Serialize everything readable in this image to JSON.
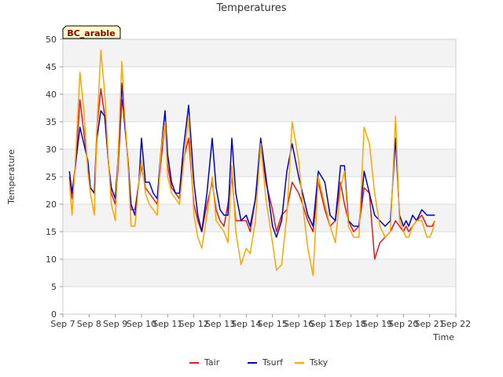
{
  "chart_data": {
    "type": "line",
    "title": "Temperatures",
    "xlabel": "Time",
    "ylabel": "Temperature",
    "site_label": "BC_arable",
    "ylim": [
      0,
      50
    ],
    "yticks": [
      0,
      5,
      10,
      15,
      20,
      25,
      30,
      35,
      40,
      45,
      50
    ],
    "xlim": [
      7,
      22
    ],
    "xticks": [
      {
        "value": 7,
        "label": "Sep 7"
      },
      {
        "value": 8,
        "label": "Sep 8"
      },
      {
        "value": 9,
        "label": "Sep 9"
      },
      {
        "value": 10,
        "label": "Sep 10"
      },
      {
        "value": 11,
        "label": "Sep 11"
      },
      {
        "value": 12,
        "label": "Sep 12"
      },
      {
        "value": 13,
        "label": "Sep 13"
      },
      {
        "value": 14,
        "label": "Sep 14"
      },
      {
        "value": 15,
        "label": "Sep 15"
      },
      {
        "value": 16,
        "label": "Sep 16"
      },
      {
        "value": 17,
        "label": "Sep 17"
      },
      {
        "value": 18,
        "label": "Sep 18"
      },
      {
        "value": 19,
        "label": "Sep 19"
      },
      {
        "value": 20,
        "label": "Sep 20"
      },
      {
        "value": 21,
        "label": "Sep 21"
      },
      {
        "value": 22,
        "label": "Sep 22"
      }
    ],
    "legend_position": "bottom-center",
    "series": [
      {
        "name": "Tair",
        "color": "#e31a1c",
        "x": [
          7.25,
          7.35,
          7.5,
          7.65,
          7.8,
          7.95,
          8.05,
          8.2,
          8.3,
          8.45,
          8.6,
          8.75,
          8.85,
          9.0,
          9.1,
          9.25,
          9.35,
          9.5,
          9.6,
          9.75,
          9.9,
          10.0,
          10.15,
          10.3,
          10.45,
          10.6,
          10.75,
          10.9,
          11.0,
          11.15,
          11.3,
          11.45,
          11.6,
          11.8,
          12.0,
          12.15,
          12.3,
          12.5,
          12.7,
          12.85,
          13.0,
          13.15,
          13.3,
          13.45,
          13.6,
          13.8,
          14.0,
          14.15,
          14.35,
          14.55,
          14.75,
          15.0,
          15.15,
          15.35,
          15.55,
          15.75,
          16.0,
          16.15,
          16.35,
          16.55,
          16.75,
          17.0,
          17.2,
          17.4,
          17.6,
          17.75,
          17.9,
          18.1,
          18.3,
          18.5,
          18.7,
          18.9,
          19.1,
          19.3,
          19.5,
          19.7,
          19.85,
          20.0,
          20.1,
          20.2,
          20.35,
          20.5,
          20.7,
          20.9,
          21.0,
          21.1,
          21.2
        ],
        "y": [
          25,
          21,
          28,
          39,
          33,
          27,
          23,
          22,
          34,
          41,
          36,
          27,
          22,
          20,
          26,
          39,
          36,
          27,
          19,
          19,
          24,
          27,
          23,
          22,
          21,
          20,
          28,
          35,
          27,
          23,
          22,
          21,
          28,
          32,
          20,
          17,
          15,
          20,
          24,
          19,
          17,
          16,
          20,
          25,
          17,
          17,
          17,
          15,
          21,
          31,
          24,
          19,
          15,
          18,
          19,
          24,
          22,
          20,
          17,
          15,
          24,
          19,
          16,
          17,
          24,
          20,
          17,
          15,
          16,
          23,
          22,
          10,
          13,
          14,
          15,
          17,
          16,
          15,
          16,
          15,
          16,
          17,
          18,
          16,
          16,
          16,
          17
        ]
      },
      {
        "name": "Tsurf",
        "color": "#0000cc",
        "x": [
          7.25,
          7.35,
          7.5,
          7.65,
          7.8,
          7.95,
          8.05,
          8.2,
          8.3,
          8.45,
          8.6,
          8.75,
          8.85,
          9.0,
          9.1,
          9.25,
          9.35,
          9.5,
          9.6,
          9.75,
          9.9,
          10.0,
          10.15,
          10.3,
          10.45,
          10.6,
          10.75,
          10.9,
          11.0,
          11.15,
          11.3,
          11.45,
          11.6,
          11.8,
          12.0,
          12.15,
          12.3,
          12.5,
          12.7,
          12.85,
          13.0,
          13.15,
          13.3,
          13.45,
          13.6,
          13.8,
          14.0,
          14.15,
          14.35,
          14.55,
          14.75,
          15.0,
          15.15,
          15.35,
          15.55,
          15.75,
          16.0,
          16.15,
          16.35,
          16.55,
          16.75,
          17.0,
          17.2,
          17.4,
          17.6,
          17.75,
          17.9,
          18.1,
          18.3,
          18.5,
          18.7,
          18.9,
          19.1,
          19.3,
          19.5,
          19.7,
          19.85,
          20.0,
          20.1,
          20.2,
          20.35,
          20.5,
          20.7,
          20.9,
          21.0,
          21.1,
          21.2
        ],
        "y": [
          26,
          22,
          28,
          34,
          31,
          28,
          23,
          22,
          32,
          37,
          36,
          27,
          23,
          21,
          28,
          42,
          35,
          27,
          20,
          18,
          24,
          32,
          24,
          24,
          22,
          21,
          30,
          37,
          29,
          24,
          22,
          22,
          30,
          38,
          24,
          18,
          15,
          22,
          32,
          23,
          19,
          18,
          18,
          32,
          22,
          17,
          18,
          16,
          21,
          32,
          25,
          16,
          14,
          17,
          26,
          31,
          25,
          22,
          18,
          16,
          26,
          24,
          18,
          17,
          27,
          27,
          17,
          16,
          16,
          26,
          22,
          18,
          17,
          16,
          17,
          32,
          18,
          16,
          17,
          16,
          18,
          17,
          19,
          18,
          18,
          18,
          18
        ]
      },
      {
        "name": "Tsky",
        "color": "#ffa500",
        "x": [
          7.25,
          7.35,
          7.5,
          7.65,
          7.8,
          7.95,
          8.05,
          8.2,
          8.3,
          8.45,
          8.6,
          8.75,
          8.85,
          9.0,
          9.1,
          9.25,
          9.35,
          9.5,
          9.6,
          9.75,
          9.9,
          10.0,
          10.15,
          10.3,
          10.45,
          10.6,
          10.75,
          10.9,
          11.0,
          11.15,
          11.3,
          11.45,
          11.6,
          11.8,
          12.0,
          12.15,
          12.3,
          12.5,
          12.7,
          12.85,
          13.0,
          13.15,
          13.3,
          13.45,
          13.6,
          13.8,
          14.0,
          14.15,
          14.35,
          14.55,
          14.75,
          15.0,
          15.15,
          15.35,
          15.55,
          15.75,
          16.0,
          16.15,
          16.35,
          16.55,
          16.75,
          17.0,
          17.2,
          17.4,
          17.6,
          17.75,
          17.9,
          18.1,
          18.3,
          18.5,
          18.7,
          18.9,
          19.1,
          19.3,
          19.5,
          19.7,
          19.85,
          20.0,
          20.1,
          20.2,
          20.35,
          20.5,
          20.7,
          20.9,
          21.0,
          21.1,
          21.2
        ],
        "y": [
          24,
          18,
          30,
          44,
          37,
          26,
          22,
          18,
          34,
          48,
          40,
          27,
          20,
          17,
          28,
          46,
          37,
          26,
          16,
          16,
          24,
          28,
          22,
          20,
          19,
          18,
          30,
          35,
          25,
          22,
          21,
          20,
          27,
          36,
          18,
          14,
          12,
          18,
          25,
          17,
          16,
          15,
          13,
          27,
          15,
          9,
          12,
          11,
          17,
          31,
          21,
          13,
          8,
          9,
          18,
          35,
          28,
          20,
          12,
          7,
          25,
          20,
          16,
          13,
          23,
          26,
          16,
          14,
          14,
          34,
          31,
          22,
          16,
          14,
          15,
          36,
          17,
          15,
          14,
          14,
          16,
          17,
          17,
          14,
          14,
          15,
          17
        ]
      }
    ]
  }
}
